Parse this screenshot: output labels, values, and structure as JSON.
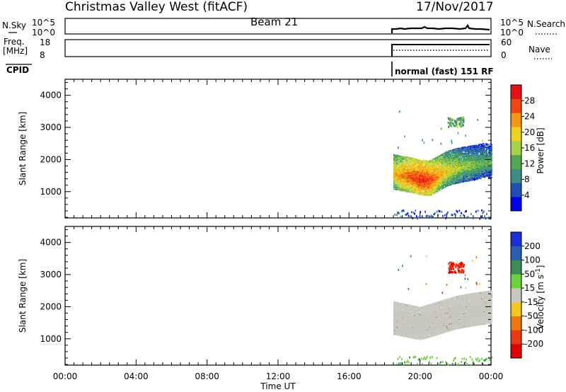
{
  "header": {
    "title": "Christmas Valley West (fitACF)",
    "beam": "Beam 21",
    "date": "17/Nov/2017"
  },
  "panels": {
    "nsky": {
      "label": "N.Sky",
      "ticks": [
        "10^5",
        "10^0"
      ],
      "right_label": "N.Search",
      "right_ticks": [
        "10^5",
        "10^0"
      ]
    },
    "freq": {
      "label_line1": "Freq.",
      "label_line2": "[MHz]",
      "ticks": [
        "18",
        "8"
      ],
      "right_label": "Nave",
      "right_ticks": [
        "60",
        "0"
      ]
    },
    "cpid": {
      "label": "CPID",
      "mode": "normal (fast) 151 RF"
    }
  },
  "colors": {
    "power": [
      "#0000ee",
      "#1f4fb4",
      "#3b8c84",
      "#52a852",
      "#a6d24a",
      "#f0d21e",
      "#f59614",
      "#f04614",
      "#e81010"
    ],
    "velocity": [
      "#1a2edc",
      "#2d5cb4",
      "#3c8c5a",
      "#6cd23c",
      "#c8c8c0",
      "#f2c81e",
      "#f07814",
      "#ea3a14",
      "#e00000"
    ]
  },
  "chart_data": [
    {
      "type": "heatmap",
      "quantity": "Power",
      "xlabel": "",
      "ylabel": "Slant Range [km]",
      "colorbar_label": "Power [dB]",
      "colorbar_ticks": [
        "28",
        "24",
        "20",
        "16",
        "12",
        "8",
        "4"
      ],
      "color_range": [
        0,
        32
      ],
      "ylim": [
        180,
        4500
      ],
      "y_ticks": [
        "4000",
        "3000",
        "2000",
        "1000"
      ],
      "xlim": [
        "00:00",
        "24:00"
      ],
      "data_start": "18:30",
      "band_center_km": [
        [
          "18:30",
          1520
        ],
        [
          "19:00",
          1460
        ],
        [
          "19:30",
          1420
        ],
        [
          "20:00",
          1340
        ],
        [
          "20:30",
          1320
        ],
        [
          "21:00",
          1460
        ],
        [
          "21:30",
          1620
        ],
        [
          "22:00",
          1700
        ],
        [
          "22:30",
          1760
        ],
        [
          "23:00",
          1800
        ],
        [
          "23:30",
          1860
        ],
        [
          "24:00",
          1880
        ]
      ],
      "band_power_dB": [
        [
          "18:30",
          22
        ],
        [
          "19:00",
          25
        ],
        [
          "19:30",
          27
        ],
        [
          "20:00",
          29
        ],
        [
          "20:30",
          28
        ],
        [
          "21:00",
          24
        ],
        [
          "21:30",
          20
        ],
        [
          "22:00",
          18
        ],
        [
          "22:30",
          16
        ],
        [
          "23:00",
          15
        ],
        [
          "23:30",
          14
        ],
        [
          "24:00",
          13
        ]
      ],
      "features": [
        {
          "name": "far-range patch",
          "time": "22:00",
          "range_km": 3200,
          "power_dB": 12
        },
        {
          "name": "near-range echoes",
          "time_from": "18:30",
          "time_to": "24:00",
          "range_km": 300,
          "power_dB": 6
        }
      ]
    },
    {
      "type": "heatmap",
      "quantity": "Velocity",
      "xlabel": "Time UT",
      "ylabel": "Slant Range [km]",
      "colorbar_label": "Velocity [m s^-1]",
      "colorbar_ticks": [
        "200",
        "100",
        "50",
        "15",
        "-15",
        "-50",
        "-100",
        "-200"
      ],
      "color_range": [
        -250,
        250
      ],
      "ylim": [
        180,
        4500
      ],
      "y_ticks": [
        "4000",
        "3000",
        "2000",
        "1000"
      ],
      "x_ticks": [
        "00:00",
        "04:00",
        "08:00",
        "12:00",
        "16:00",
        "20:00",
        "00:00"
      ],
      "xlim": [
        "00:00",
        "24:00"
      ],
      "data_start": "18:30",
      "ground_scatter_band_km": [
        [
          "18:30",
          1550
        ],
        [
          "20:00",
          1380
        ],
        [
          "21:00",
          1550
        ],
        [
          "22:00",
          1720
        ],
        [
          "23:00",
          1820
        ],
        [
          "24:00",
          1900
        ]
      ],
      "ground_scatter_velocity": 0,
      "features": [
        {
          "name": "far-range patch",
          "time": "22:00",
          "range_km": 3250,
          "velocity": -180
        },
        {
          "name": "near-range echoes",
          "time_from": "18:30",
          "time_to": "24:00",
          "range_km": 320,
          "velocity": 40
        }
      ]
    }
  ]
}
